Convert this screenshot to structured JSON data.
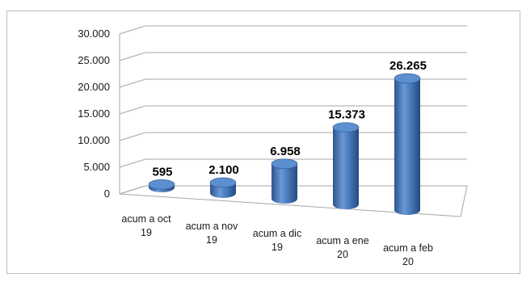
{
  "chart_data": {
    "type": "bar",
    "style": "3d-cylinder",
    "categories": [
      [
        "acum a oct",
        "19"
      ],
      [
        "acum a nov",
        "19"
      ],
      [
        "acum a dic",
        "19"
      ],
      [
        "acum a ene",
        "20"
      ],
      [
        "acum a feb",
        "20"
      ]
    ],
    "values": [
      595,
      2100,
      6958,
      15373,
      26265
    ],
    "data_labels": [
      "595",
      "2.100",
      "6.958",
      "15.373",
      "26.265"
    ],
    "y_ticks": [
      "0",
      "5.000",
      "10.000",
      "15.000",
      "20.000",
      "25.000",
      "30.000"
    ],
    "ylim": [
      0,
      30000
    ],
    "grid": true,
    "legend": "none",
    "colors": {
      "bar": "#4f81bd",
      "bar_dark": "#2c5590",
      "bar_light": "#7ea6d9",
      "top": "#5b8fd0",
      "grid": "#a6a6a6"
    }
  }
}
